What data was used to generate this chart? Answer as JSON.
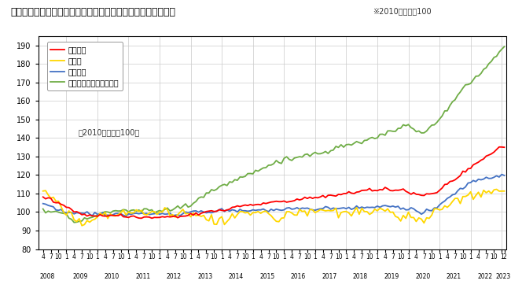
{
  "title": "＜不動産価格指数（住宅）（令和５年２月分・季節調整値）＞",
  "title_note": "※2010年平均＝100",
  "legend_note": "（2010年平均＝100）",
  "legend_items": [
    "住宅総合",
    "住宅地",
    "戸建住宅",
    "マンション（区分所有）"
  ],
  "line_colors": [
    "#ff0000",
    "#ffd700",
    "#4472c4",
    "#70ad47"
  ],
  "ylim": [
    80,
    195
  ],
  "yticks": [
    80,
    90,
    100,
    110,
    120,
    130,
    140,
    150,
    160,
    170,
    180,
    190
  ],
  "background_color": "#ffffff",
  "plot_bg_color": "#ffffff",
  "grid_color": "#cccccc"
}
